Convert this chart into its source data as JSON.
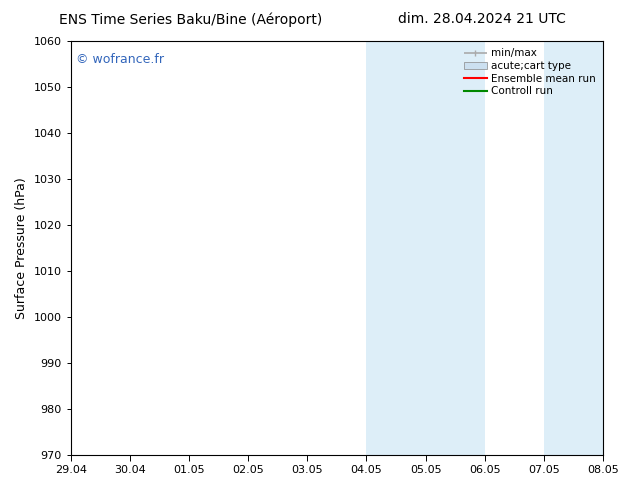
{
  "title_left": "ENS Time Series Baku/Bine (Aéroport)",
  "title_right": "dim. 28.04.2024 21 UTC",
  "ylabel": "Surface Pressure (hPa)",
  "ylim": [
    970,
    1060
  ],
  "yticks": [
    970,
    980,
    990,
    1000,
    1010,
    1020,
    1030,
    1040,
    1050,
    1060
  ],
  "xtick_labels": [
    "29.04",
    "30.04",
    "01.05",
    "02.05",
    "03.05",
    "04.05",
    "05.05",
    "06.05",
    "07.05",
    "08.05"
  ],
  "xtick_positions": [
    0,
    1,
    2,
    3,
    4,
    5,
    6,
    7,
    8,
    9
  ],
  "xlim": [
    0,
    9
  ],
  "shade_bands": [
    {
      "xmin": 5.0,
      "xmax": 7.0,
      "color": "#ddeef8"
    },
    {
      "xmin": 8.0,
      "xmax": 9.5,
      "color": "#ddeef8"
    }
  ],
  "watermark": "© wofrance.fr",
  "watermark_color": "#3366bb",
  "legend_entries": [
    {
      "label": "min/max",
      "color": "#aaaaaa",
      "lw": 1.2
    },
    {
      "label": "acute;cart type",
      "color": "#cce0f0",
      "lw": 6
    },
    {
      "label": "Ensemble mean run",
      "color": "#ff0000",
      "lw": 1.5
    },
    {
      "label": "Controll run",
      "color": "#008800",
      "lw": 1.5
    }
  ],
  "bg_color": "#ffffff",
  "grid_color": "#dddddd",
  "title_fontsize": 10,
  "label_fontsize": 9,
  "tick_fontsize": 8,
  "legend_fontsize": 7.5
}
